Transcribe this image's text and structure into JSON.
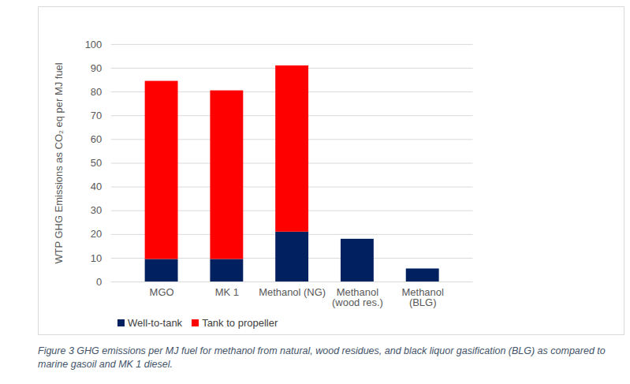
{
  "chart_data": {
    "type": "bar",
    "caption": "Figure 3 GHG emissions per MJ fuel for methanol from natural, wood residues, and black liquor gasification (BLG) as compared to marine gasoil and MK 1 diesel.",
    "y_label": "WTP GHG Emissions as CO₂ eq per MJ fuel",
    "categories": [
      "MGO",
      "MK 1",
      "Methanol (NG)",
      "Methanol (wood res.)",
      "Methanol (BLG)"
    ],
    "series": [
      {
        "name": "Well-to-tank",
        "color": "#002060",
        "values": [
          9.5,
          9.5,
          21,
          18,
          5.5
        ]
      },
      {
        "name": "Tank to propeller",
        "color": "#ff0000",
        "values": [
          75,
          71,
          70,
          0,
          0
        ]
      }
    ],
    "stacked": true,
    "ylim": [
      0,
      100
    ],
    "yticks": [
      0,
      10,
      20,
      30,
      40,
      50,
      60,
      70,
      80,
      90,
      100
    ],
    "grid": true,
    "legend": "bottom"
  }
}
